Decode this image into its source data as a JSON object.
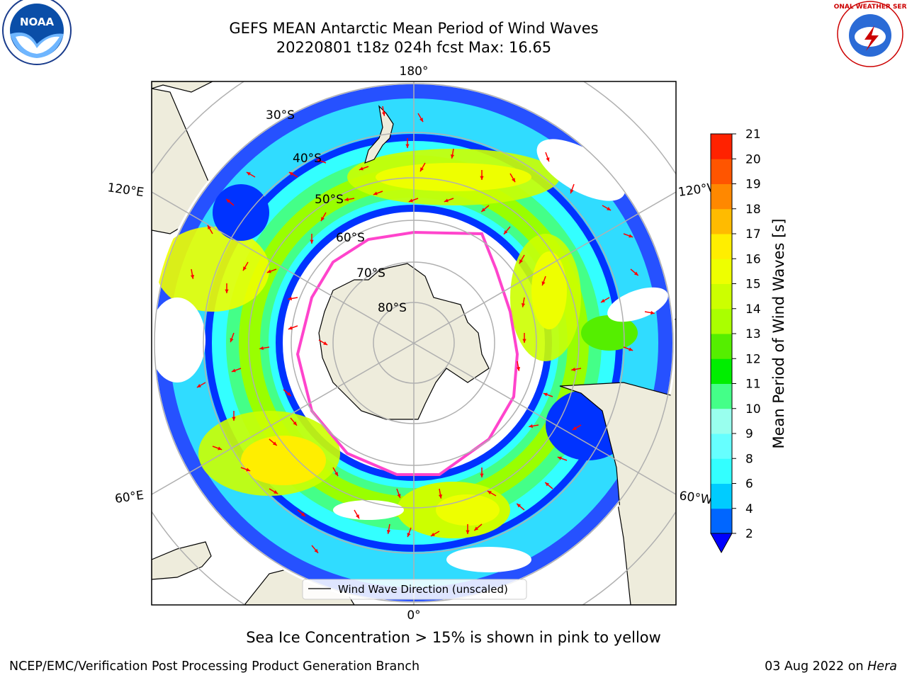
{
  "title": {
    "line1": "GEFS MEAN Antarctic Mean Period of Wind Waves",
    "line2": "20220801 t18z 024h fcst   Max: 16.65"
  },
  "map": {
    "projection": "south polar stereographic",
    "longitude_labels": {
      "top": "180°",
      "bottom": "0°",
      "left_upper": "120°E",
      "left_lower": "60°E",
      "right_upper": "120°W",
      "right_lower": "60°W"
    },
    "latitude_labels": [
      "30°S",
      "40°S",
      "50°S",
      "60°S",
      "70°S",
      "80°S"
    ],
    "legend": "Wind Wave Direction (unscaled)",
    "arrow_color": "#ff0000",
    "land_color": "#eeecdc",
    "sea_ice_color": "#ff44cc"
  },
  "colorbar": {
    "label": "Mean Period of Wind Waves [s]",
    "ticks": [
      "2",
      "4",
      "6",
      "8",
      "9",
      "10",
      "11",
      "12",
      "13",
      "14",
      "15",
      "16",
      "17",
      "18",
      "19",
      "20",
      "21"
    ],
    "colors": [
      "#0066ff",
      "#00ccff",
      "#33ffff",
      "#66ffff",
      "#99ffee",
      "#44ff88",
      "#00ee00",
      "#55ee00",
      "#aaff00",
      "#ccff00",
      "#eeff00",
      "#ffee00",
      "#ffbb00",
      "#ff8800",
      "#ff5500",
      "#ff2200"
    ],
    "extend_color": "#0000ff"
  },
  "caption": "Sea Ice Concentration > 15% is shown in pink to yellow",
  "footer": {
    "left": "NCEP/EMC/Verification Post Processing Product Generation Branch",
    "date": "03 Aug 2022 on",
    "machine": "Hera"
  },
  "logos": {
    "noaa_text": "NOAA",
    "nws_text": "NATIONAL WEATHER SERVICE"
  }
}
